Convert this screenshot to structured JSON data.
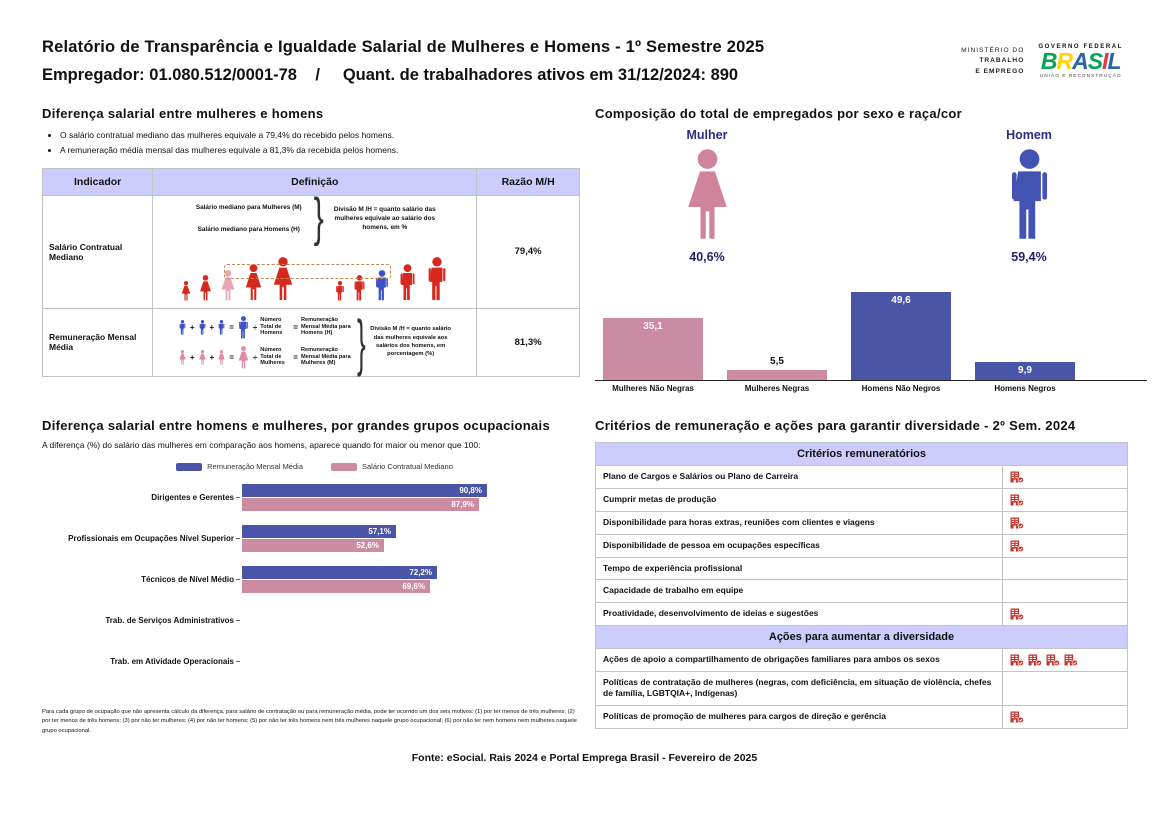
{
  "header": {
    "title": "Relatório de Transparência e Igualdade Salarial de Mulheres e Homens - 1º Semestre 2025",
    "subtitle": "Empregador: 01.080.512/0001-78    /     Quant. de trabalhadores ativos em 31/12/2024: 890",
    "ministry": {
      "line1": "MINISTÉRIO DO",
      "line2": "TRABALHO",
      "line3": "E EMPREGO"
    },
    "gov": {
      "top": "GOVERNO FEDERAL",
      "brand": "BRASIL",
      "bottom": "UNIÃO E RECONSTRUÇÃO",
      "brand_colors": [
        "#00a651",
        "#ffd400",
        "#2862ac",
        "#00a651",
        "#e03a3e",
        "#2862ac"
      ]
    }
  },
  "salary_diff": {
    "title": "Diferença salarial entre mulheres e homens",
    "bullets": [
      "O salário contratual mediano das mulheres equivale a 79,4% do recebido pelos homens.",
      "A remuneração média mensal das mulheres equivale a 81,3% da recebida pelos homens."
    ],
    "headers": {
      "indicator": "Indicador",
      "definition": "Definição",
      "ratio": "Razão M/H"
    },
    "row1": {
      "indicator": "Salário Contratual Mediano",
      "label_women": "Salário mediano para Mulheres (M)",
      "label_men": "Salário mediano para Homens (H)",
      "note": "Divisão M /H = quanto salário das mulheres equivale ao salário dos homens, em %",
      "ratio": "79,4%"
    },
    "row2": {
      "indicator": "Remuneração Mensal Média",
      "plus": "+",
      "equals": "=",
      "divide": "÷",
      "men_divisor": "Número Total de Homens",
      "men_result": "Remuneração Mensal Média para Homens (H)",
      "women_divisor": "Número Total de Mulheres",
      "women_result": "Remuneração Mensal Média para Mulheres (M)",
      "note": "Divisão M /H = quanto salário das mulheres equivale aos salários dos homens, em porcentagem (%)",
      "ratio": "81,3%"
    }
  },
  "composition": {
    "title": "Composição do total de empregados por sexo e raça/cor",
    "female": {
      "label": "Mulher",
      "pct": "40,6%"
    },
    "male": {
      "label": "Homem",
      "pct": "59,4%"
    },
    "bars": [
      {
        "category": "Mulheres Não Negras",
        "value": 35.1,
        "label": "35,1",
        "color": "#cb8ba2",
        "label_pos": "inside"
      },
      {
        "category": "Mulheres Negras",
        "value": 5.5,
        "label": "5,5",
        "color": "#cb8ba2",
        "label_pos": "above"
      },
      {
        "category": "Homens Não Negros",
        "value": 49.6,
        "label": "49,6",
        "color": "#4a55a7",
        "label_pos": "inside"
      },
      {
        "category": "Homens Negros",
        "value": 9.9,
        "label": "9,9",
        "color": "#4a55a7",
        "label_pos": "inside"
      }
    ]
  },
  "occupational": {
    "title": "Diferença salarial entre homens e mulheres, por grandes grupos ocupacionais",
    "subtitle": "A diferença (%) do salário das mulheres em comparação aos homens, aparece quando for maior ou menor que 100:",
    "legend": [
      {
        "label": "Remuneração Mensal Média",
        "color": "#4a55a7"
      },
      {
        "label": "Salário Contratual Mediano",
        "color": "#cb8ba2"
      }
    ],
    "groups": [
      {
        "label": "Dirigentes e Gerentes",
        "bars": [
          {
            "value": 90.8,
            "label": "90,8%",
            "color": "#4a55a7"
          },
          {
            "value": 87.9,
            "label": "87,9%",
            "color": "#cb8ba2"
          }
        ]
      },
      {
        "label": "Profissionais em Ocupações Nível Superior",
        "bars": [
          {
            "value": 57.1,
            "label": "57,1%",
            "color": "#4a55a7"
          },
          {
            "value": 52.6,
            "label": "52,6%",
            "color": "#cb8ba2"
          }
        ]
      },
      {
        "label": "Técnicos de Nível Médio",
        "bars": [
          {
            "value": 72.2,
            "label": "72,2%",
            "color": "#4a55a7"
          },
          {
            "value": 69.6,
            "label": "69,6%",
            "color": "#cb8ba2"
          }
        ]
      },
      {
        "label": "Trab. de Serviços Administrativos",
        "bars": []
      },
      {
        "label": "Trab. em Atividade Operacionais",
        "bars": []
      }
    ],
    "footnote": "Para cada grupo de ocupação que não apresenta cálculo da diferença, para salário de contratação ou para remuneração média, pode ter ocorrido um dos seis motivos: (1) por ter menos de três mulheres; (2) por ter menos de três homens; (3) por não ter mulheres; (4) por não ter homens; (5) por não ter três homens nem três mulheres naquele grupo ocupacional; (6) por não ter nem homens nem mulheres naquele grupo ocupacional."
  },
  "criteria": {
    "title": "Critérios de remuneração e ações para garantir diversidade - 2º Sem. 2024",
    "sections": [
      {
        "header": "Critérios remuneratórios",
        "rows": [
          {
            "label": "Plano de Cargos e Salários ou Plano de Carreira",
            "icons": 1
          },
          {
            "label": "Cumprir metas de produção",
            "icons": 1
          },
          {
            "label": "Disponibilidade para horas extras, reuniões com clientes e viagens",
            "icons": 1
          },
          {
            "label": "Disponibilidade de pessoa em ocupações específicas",
            "icons": 1
          },
          {
            "label": "Tempo de experiência profissional",
            "icons": 0
          },
          {
            "label": "Capacidade de trabalho em equipe",
            "icons": 0
          },
          {
            "label": "Proatividade, desenvolvimento de ideias e sugestões",
            "icons": 1
          }
        ]
      },
      {
        "header": "Ações para aumentar a diversidade",
        "rows": [
          {
            "label": "Ações de apoio a compartilhamento de obrigações familiares para ambos os sexos",
            "icons": 4
          },
          {
            "label": "Políticas de contratação de mulheres (negras, com deficiência, em situação de violência, chefes de família, LGBTQIA+, Indígenas)",
            "icons": 0
          },
          {
            "label": "Políticas de promoção de mulheres para cargos de direção e gerência",
            "icons": 1
          }
        ]
      }
    ]
  },
  "footer": "Fonte: eSocial. Rais 2024 e Portal Emprega Brasil - Fevereiro de 2025",
  "colors": {
    "blue_bar": "#4a55a7",
    "pink_bar": "#cb8ba2",
    "navy_text": "#2c2c85",
    "red_figure": "#d6281e",
    "pink_figure": "#e7a6ba",
    "blue_figure": "#3f51c6",
    "table_header_bg": "#ccccff",
    "icon_red": "#c4352b"
  },
  "chart_data": [
    {
      "type": "bar",
      "title": "Composição do total de empregados por sexo e raça/cor",
      "categories": [
        "Mulheres Não Negras",
        "Mulheres Negras",
        "Homens Não Negros",
        "Homens Negros"
      ],
      "values": [
        35.1,
        5.5,
        49.6,
        9.9
      ],
      "xlabel": "",
      "ylabel": "",
      "ylim": [
        0,
        55
      ],
      "grid": false,
      "annotations": {
        "Mulher": "40,6%",
        "Homem": "59,4%"
      }
    },
    {
      "type": "bar",
      "orientation": "horizontal",
      "title": "Diferença salarial entre homens e mulheres, por grandes grupos ocupacionais",
      "categories": [
        "Dirigentes e Gerentes",
        "Profissionais em Ocupações Nível Superior",
        "Técnicos de Nível Médio",
        "Trab. de Serviços Administrativos",
        "Trab. em Atividade Operacionais"
      ],
      "series": [
        {
          "name": "Remuneração Mensal Média",
          "values": [
            90.8,
            57.1,
            72.2,
            null,
            null
          ]
        },
        {
          "name": "Salário Contratual Mediano",
          "values": [
            87.9,
            52.6,
            69.6,
            null,
            null
          ]
        }
      ],
      "xlim": [
        0,
        100
      ],
      "grid": false,
      "legend_position": "top"
    }
  ]
}
